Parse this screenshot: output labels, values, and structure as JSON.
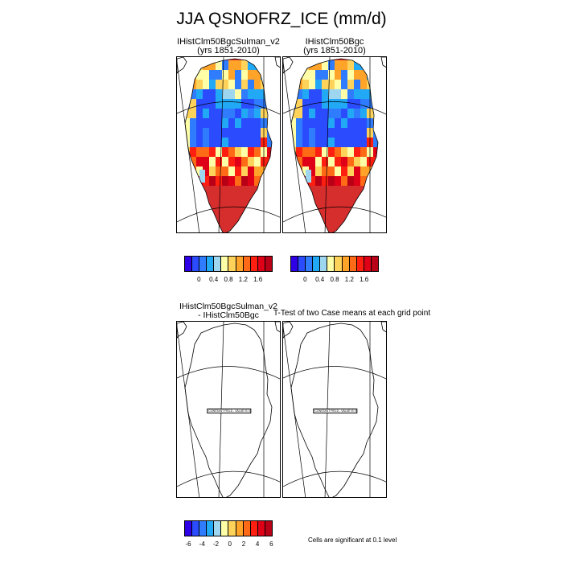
{
  "title": "JJA QSNOFRZ_ICE (mm/d)",
  "top_panels": [
    {
      "title_line1": "IHistClm50BgcSulman_v2",
      "title_line2": "(yrs 1851-2010)"
    },
    {
      "title_line1": "IHistClm50Bgc",
      "title_line2": "(yrs 1851-2010)"
    }
  ],
  "diff_panel": {
    "title_line1": "IHistClm50BgcSulman_v2",
    "title_line2": "- IHistClm50Bgc"
  },
  "ttest_title": "T-Test of two Case means at each grid point",
  "constant_field_label": "CONSTANT FIELD - VALUE IS 0",
  "significance_note": "Cells are significant at 0.1 level",
  "colors": {
    "palette_12": [
      "#2d00e6",
      "#2b4bff",
      "#2f7cff",
      "#22a9f5",
      "#9ed6f0",
      "#ffffa8",
      "#ffd35a",
      "#ffa429",
      "#ff6a16",
      "#ff1f10",
      "#df0018",
      "#b80016"
    ],
    "land_fill": "#d62d2d",
    "map_line": "#000000"
  },
  "chart_data": [
    {
      "type": "heatmap",
      "title": "IHistClm50BgcSulman_v2 (yrs 1851-2010)",
      "colorbar": {
        "ticks": [
          "0",
          "0.4",
          "0.8",
          "1.2",
          "1.6"
        ],
        "levels": [
          -0.2,
          0,
          0.2,
          0.4,
          0.6,
          0.8,
          1.0,
          1.2,
          1.4,
          1.6,
          1.8
        ]
      },
      "summary": "High melt (red, >1.6 mm/d) over southern and coastal Greenland; low values (blue, ~0-0.4 mm/d) over the northern interior band."
    },
    {
      "type": "heatmap",
      "title": "IHistClm50Bgc (yrs 1851-2010)",
      "colorbar": {
        "ticks": [
          "0",
          "0.4",
          "0.8",
          "1.2",
          "1.6"
        ],
        "levels": [
          -0.2,
          0,
          0.2,
          0.4,
          0.6,
          0.8,
          1.0,
          1.2,
          1.4,
          1.6,
          1.8
        ]
      },
      "summary": "Nearly identical pattern to the Sulman_v2 case."
    },
    {
      "type": "heatmap",
      "title": "IHistClm50BgcSulman_v2 - IHistClm50Bgc",
      "field_value": 0,
      "colorbar": {
        "ticks": [
          "-6",
          "-4",
          "-2",
          "0",
          "2",
          "4",
          "6"
        ]
      }
    },
    {
      "type": "heatmap",
      "title": "T-Test of two Case means at each grid point",
      "field_value": 0,
      "significance_level": 0.1
    }
  ]
}
